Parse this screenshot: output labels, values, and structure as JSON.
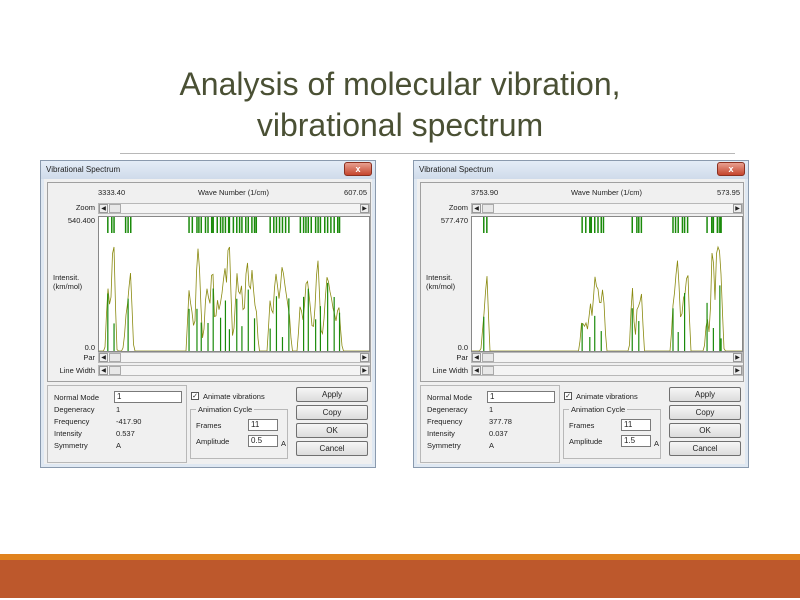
{
  "slide": {
    "title_line1": "Analysis of molecular vibration,",
    "title_line2": "vibrational spectrum"
  },
  "colors": {
    "title": "#4a5034",
    "stick": "#1a8a0a",
    "curve": "#8a8a10",
    "band_orange": "#e0821e",
    "band_rust": "#bd582c"
  },
  "windows": [
    {
      "title": "Vibrational Spectrum",
      "close": "x",
      "x_left": "3333.40",
      "x_label": "Wave Number (1/cm)",
      "x_right": "607.05",
      "zoom_label": "Zoom",
      "y_top": "540.400",
      "y_label": "Intensit.\n(km/mol)",
      "y_zero": "0.0",
      "par_label": "Par",
      "linewidth_label": "Line Width",
      "normal_mode_label": "Normal Mode",
      "normal_mode_value": "1",
      "degeneracy_label": "Degeneracy",
      "degeneracy_value": "1",
      "frequency_label": "Frequency",
      "frequency_value": "-417.90",
      "intensity_label": "Intensity",
      "intensity_value": "0.537",
      "symmetry_label": "Symmetry",
      "symmetry_value": "A",
      "animate_label": "Animate vibrations",
      "animate_checked": true,
      "cycle_label": "Animation Cycle",
      "frames_label": "Frames",
      "frames_value": "11",
      "amplitude_label": "Amplitude",
      "amplitude_value": "0.5",
      "amplitude_unit": "A",
      "buttons": [
        "Apply",
        "Copy",
        "OK",
        "Cancel"
      ]
    },
    {
      "title": "Vibrational Spectrum",
      "close": "x",
      "x_left": "3753.90",
      "x_label": "Wave Number (1/cm)",
      "x_right": "573.95",
      "zoom_label": "Zoom",
      "y_top": "577.470",
      "y_label": "Intensit.\n(km/mol)",
      "y_zero": "0.0",
      "par_label": "Par",
      "linewidth_label": "Line Width",
      "normal_mode_label": "Normal Mode",
      "normal_mode_value": "1",
      "degeneracy_label": "Degeneracy",
      "degeneracy_value": "1",
      "frequency_label": "Frequency",
      "frequency_value": "377.78",
      "intensity_label": "Intensity",
      "intensity_value": "0.037",
      "symmetry_label": "Symmetry",
      "symmetry_value": "A",
      "animate_label": "Animate vibrations",
      "animate_checked": true,
      "cycle_label": "Animation Cycle",
      "frames_label": "Frames",
      "frames_value": "11",
      "amplitude_label": "Amplitude",
      "amplitude_value": "1.5",
      "amplitude_unit": "A",
      "buttons": [
        "Apply",
        "Copy",
        "OK",
        "Cancel"
      ]
    }
  ]
}
